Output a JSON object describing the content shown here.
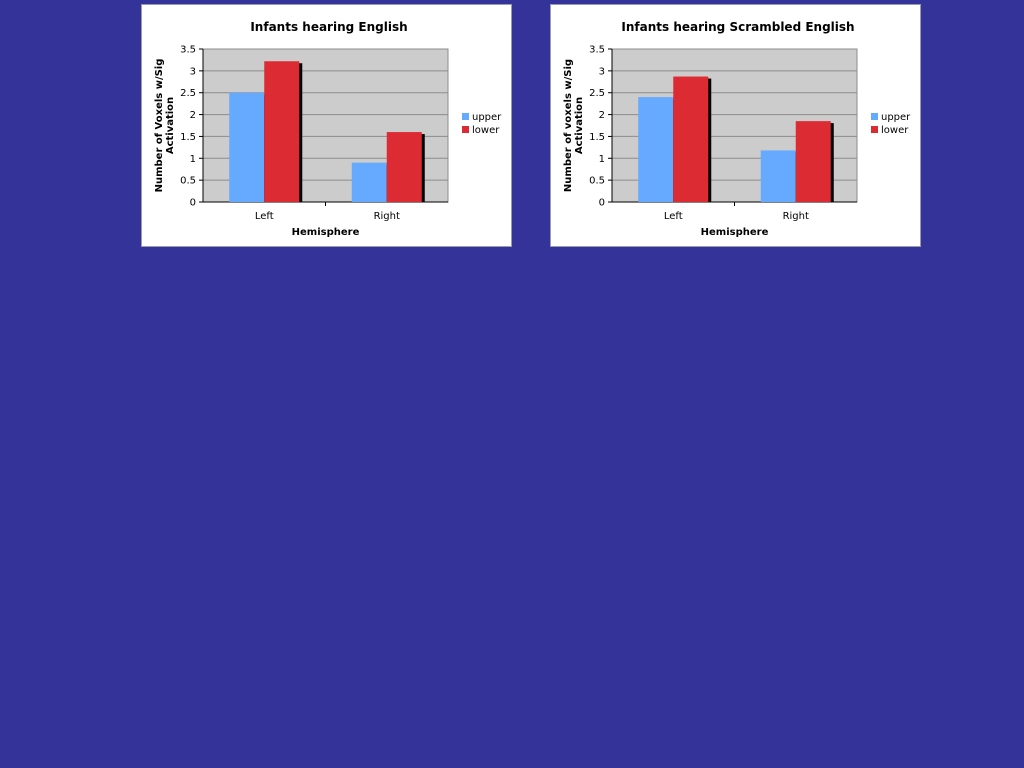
{
  "colors": {
    "background": "#333399",
    "plot_bg": "#cccccc",
    "gridline": "#8c8c8c",
    "upper": "#66aaff",
    "lower": "#dd2b33",
    "shadow": "#000000"
  },
  "chart_data": [
    {
      "type": "bar",
      "title": "Infants hearing English",
      "xlabel": "Hemisphere",
      "ylabel_lines": [
        "Number of Voxels w/Sig",
        "Activation"
      ],
      "categories": [
        "Left",
        "Right"
      ],
      "series": [
        {
          "name": "upper",
          "values": [
            2.5,
            0.9
          ]
        },
        {
          "name": "lower",
          "values": [
            3.22,
            1.6
          ]
        }
      ],
      "ylim": [
        0,
        3.5
      ],
      "yticks": [
        0,
        0.5,
        1,
        1.5,
        2,
        2.5,
        3,
        3.5
      ],
      "grid": true,
      "legend_position": "right"
    },
    {
      "type": "bar",
      "title": "Infants hearing Scrambled English",
      "xlabel": "Hemisphere",
      "ylabel_lines": [
        "Number of voxels w/Sig",
        "Activation"
      ],
      "categories": [
        "Left",
        "Right"
      ],
      "series": [
        {
          "name": "upper",
          "values": [
            2.4,
            1.18
          ]
        },
        {
          "name": "lower",
          "values": [
            2.87,
            1.85
          ]
        }
      ],
      "ylim": [
        0,
        3.5
      ],
      "yticks": [
        0,
        0.5,
        1,
        1.5,
        2,
        2.5,
        3,
        3.5
      ],
      "grid": true,
      "legend_position": "right"
    }
  ]
}
